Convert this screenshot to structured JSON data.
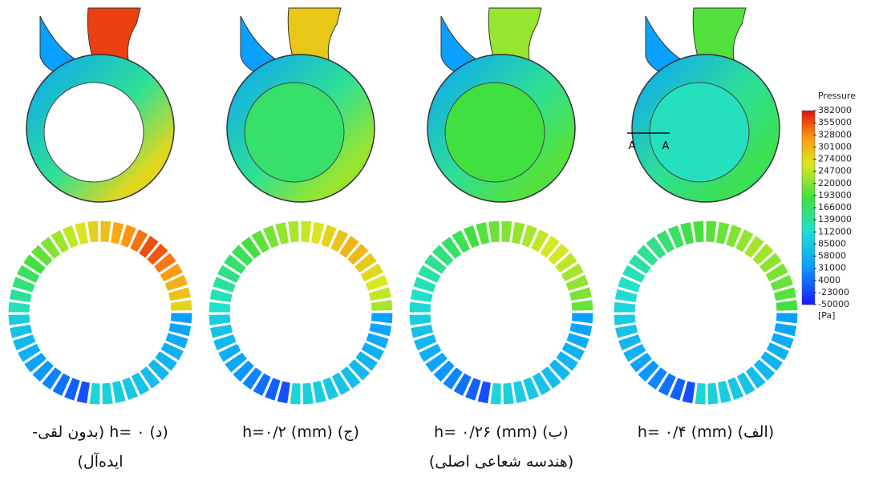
{
  "colorbar": {
    "title": "Pressure",
    "unit": "[Pa]",
    "ticks": [
      382000,
      355000,
      328000,
      301000,
      274000,
      247000,
      220000,
      193000,
      166000,
      139000,
      112000,
      85000,
      58000,
      31000,
      4000,
      -23000,
      -50000
    ]
  },
  "section_labels": [
    "A",
    "A"
  ],
  "panels": [
    {
      "caption": [
        "(د) h= ۰ (بدون لقی-",
        "ایده‌آل)"
      ]
    },
    {
      "caption": [
        "(ج) h=۰/۲ (mm)"
      ]
    },
    {
      "caption": [
        "(ب) h= ۰/۲۶ (mm)",
        "(هندسه شعاعی اصلی)"
      ]
    },
    {
      "caption": [
        "(الف) h= ۰/۴ (mm)"
      ]
    }
  ]
}
